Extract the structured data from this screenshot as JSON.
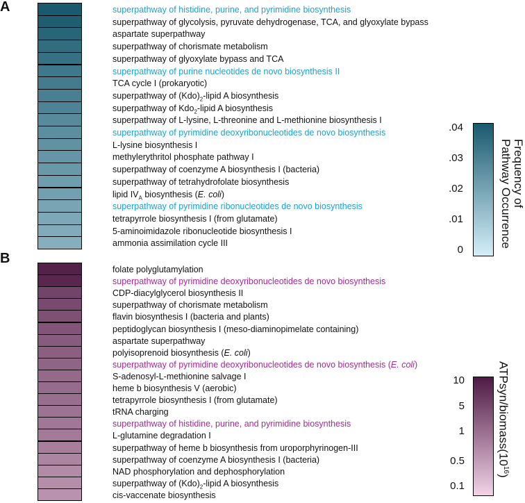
{
  "panels": [
    {
      "letter": "A",
      "chart_data": {
        "type": "heatmap",
        "rows": [
          {
            "parts": [
              [
                "superpathway of histidine, purine, and pyrimidine biosynthesis",
                ""
              ]
            ],
            "highlight": true,
            "value": 0.04
          },
          {
            "parts": [
              [
                "superpathway of glycolysis, pyruvate dehydrogenase, TCA, and glyoxylate bypass",
                ""
              ]
            ],
            "highlight": false,
            "value": 0.039
          },
          {
            "parts": [
              [
                "aspartate superpathway",
                ""
              ]
            ],
            "highlight": false,
            "value": 0.037
          },
          {
            "parts": [
              [
                "superpathway of chorismate metabolism",
                ""
              ]
            ],
            "highlight": false,
            "value": 0.035
          },
          {
            "parts": [
              [
                "superpathway of glyoxylate bypass and TCA",
                ""
              ]
            ],
            "highlight": false,
            "value": 0.034
          },
          {
            "parts": [
              [
                "superpathway of purine nucleotides de novo biosynthesis II",
                ""
              ]
            ],
            "highlight": true,
            "value": 0.032
          },
          {
            "parts": [
              [
                "TCA cycle I (prokaryotic)",
                ""
              ]
            ],
            "highlight": false,
            "value": 0.031
          },
          {
            "parts": [
              [
                "superpathway of (Kdo)",
                ""
              ],
              [
                "2",
                "sub"
              ],
              [
                "-lipid A biosynthesis",
                ""
              ]
            ],
            "highlight": false,
            "value": 0.03
          },
          {
            "parts": [
              [
                "superpathway of Kdo",
                ""
              ],
              [
                "2",
                "sub"
              ],
              [
                "-lipid A biosynthesis",
                ""
              ]
            ],
            "highlight": false,
            "value": 0.029
          },
          {
            "parts": [
              [
                "superpathway of L-lysine, L-threonine and L-methionine biosynthesis I",
                ""
              ]
            ],
            "highlight": false,
            "value": 0.027
          },
          {
            "parts": [
              [
                "superpathway of pyrimidine deoxyribonucleotides de novo biosynthesis",
                ""
              ]
            ],
            "highlight": true,
            "value": 0.026
          },
          {
            "parts": [
              [
                "L-lysine biosynthesis I",
                ""
              ]
            ],
            "highlight": false,
            "value": 0.025
          },
          {
            "parts": [
              [
                "methylerythritol phosphate pathway I",
                ""
              ]
            ],
            "highlight": false,
            "value": 0.024
          },
          {
            "parts": [
              [
                "superpathway of coenzyme A biosynthesis I (bacteria)",
                ""
              ]
            ],
            "highlight": false,
            "value": 0.023
          },
          {
            "parts": [
              [
                "superpathway of tetrahydrofolate biosynthesis",
                ""
              ]
            ],
            "highlight": false,
            "value": 0.022
          },
          {
            "parts": [
              [
                "lipid IV",
                ""
              ],
              [
                "A",
                "sub"
              ],
              [
                " biosynthesis (",
                ""
              ],
              [
                "E. coli",
                "i"
              ],
              [
                ")",
                ""
              ]
            ],
            "highlight": false,
            "value": 0.021
          },
          {
            "parts": [
              [
                "superpathway of pyrimidine ribonucleotides de novo biosynthesis",
                ""
              ]
            ],
            "highlight": true,
            "value": 0.02
          },
          {
            "parts": [
              [
                "tetrapyrrole biosynthesis I (from glutamate)",
                ""
              ]
            ],
            "highlight": false,
            "value": 0.019
          },
          {
            "parts": [
              [
                "5-aminoimidazole ribonucleotide biosynthesis I",
                ""
              ]
            ],
            "highlight": false,
            "value": 0.018
          },
          {
            "parts": [
              [
                "ammonia assimilation cycle III",
                ""
              ]
            ],
            "highlight": false,
            "value": 0.017
          }
        ],
        "colorbar": {
          "ticks": [
            ".04",
            ".03",
            ".02",
            ".01",
            "0"
          ],
          "range": [
            0,
            0.04
          ],
          "scale": "linear",
          "title_parts": [
            [
              "Frequency  of",
              ""
            ],
            [
              "Pathway Occurrence",
              ""
            ]
          ],
          "low_color": "#d5eef9",
          "high_color": "#1a5a6e"
        }
      },
      "highlight_color": "#1ea2cf"
    },
    {
      "letter": "B",
      "chart_data": {
        "type": "heatmap",
        "rows": [
          {
            "parts": [
              [
                "folate polyglutamylation",
                ""
              ]
            ],
            "highlight": false,
            "value": 8.5
          },
          {
            "parts": [
              [
                "superpathway of pyrimidine deoxyribonucleotides de novo biosynthesis",
                ""
              ]
            ],
            "highlight": true,
            "value": 7.5
          },
          {
            "parts": [
              [
                "CDP-diacylglycerol biosynthesis II",
                ""
              ]
            ],
            "highlight": false,
            "value": 3.5
          },
          {
            "parts": [
              [
                "superpathway of chorismate metabolism",
                ""
              ]
            ],
            "highlight": false,
            "value": 3.0
          },
          {
            "parts": [
              [
                "flavin biosynthesis I (bacteria and plants)",
                ""
              ]
            ],
            "highlight": false,
            "value": 2.6
          },
          {
            "parts": [
              [
                "peptidoglycan biosynthesis I (meso-diaminopimelate containing)",
                ""
              ]
            ],
            "highlight": false,
            "value": 2.3
          },
          {
            "parts": [
              [
                "aspartate superpathway",
                ""
              ]
            ],
            "highlight": false,
            "value": 2.0
          },
          {
            "parts": [
              [
                "polyisoprenoid biosynthesis (",
                ""
              ],
              [
                "E. coli",
                "i"
              ],
              [
                ")",
                ""
              ]
            ],
            "highlight": false,
            "value": 1.8
          },
          {
            "parts": [
              [
                "superpathway of pyrimidine deoxyribonucleotides de novo biosynthesis (",
                ""
              ],
              [
                "E. coli",
                "i"
              ],
              [
                ")",
                ""
              ]
            ],
            "highlight": true,
            "value": 1.6
          },
          {
            "parts": [
              [
                "S-adenosyl-L-methionine salvage I",
                ""
              ]
            ],
            "highlight": false,
            "value": 1.4
          },
          {
            "parts": [
              [
                "heme b biosynthesis V (aerobic)",
                ""
              ]
            ],
            "highlight": false,
            "value": 1.3
          },
          {
            "parts": [
              [
                "tetrapyrrole biosynthesis I (from glutamate)",
                ""
              ]
            ],
            "highlight": false,
            "value": 1.2
          },
          {
            "parts": [
              [
                "tRNA charging",
                ""
              ]
            ],
            "highlight": false,
            "value": 1.1
          },
          {
            "parts": [
              [
                "superpathway of histidine, purine, and pyrimidine biosynthesis",
                ""
              ]
            ],
            "highlight": true,
            "value": 1.0
          },
          {
            "parts": [
              [
                "L-glutamine degradation I",
                ""
              ]
            ],
            "highlight": false,
            "value": 0.9
          },
          {
            "parts": [
              [
                "superpathway of heme b biosynthesis from uroporphyrinogen-III",
                ""
              ]
            ],
            "highlight": false,
            "value": 0.8
          },
          {
            "parts": [
              [
                "superpathway of coenzyme A biosynthesis I (bacteria)",
                ""
              ]
            ],
            "highlight": false,
            "value": 0.7
          },
          {
            "parts": [
              [
                "NAD phosphorylation and dephosphorylation",
                ""
              ]
            ],
            "highlight": false,
            "value": 0.6
          },
          {
            "parts": [
              [
                "superpathway of (Kdo)",
                ""
              ],
              [
                "2",
                "sub"
              ],
              [
                "-lipid A biosynthesis",
                ""
              ]
            ],
            "highlight": false,
            "value": 0.55
          },
          {
            "parts": [
              [
                "cis-vaccenate biosynthesis",
                ""
              ]
            ],
            "highlight": false,
            "value": 0.5
          }
        ],
        "colorbar": {
          "ticks": [
            "10",
            "5",
            "1",
            "0.5",
            "0.1"
          ],
          "range": [
            0.1,
            10
          ],
          "scale": "log",
          "title_parts": [
            [
              "ATPsyn/biomass(10",
              ""
            ],
            [
              "16",
              "sup"
            ],
            [
              ")",
              ""
            ]
          ],
          "low_color": "#f1d3e6",
          "high_color": "#4e1a45"
        }
      },
      "highlight_color": "#a42b96"
    }
  ]
}
